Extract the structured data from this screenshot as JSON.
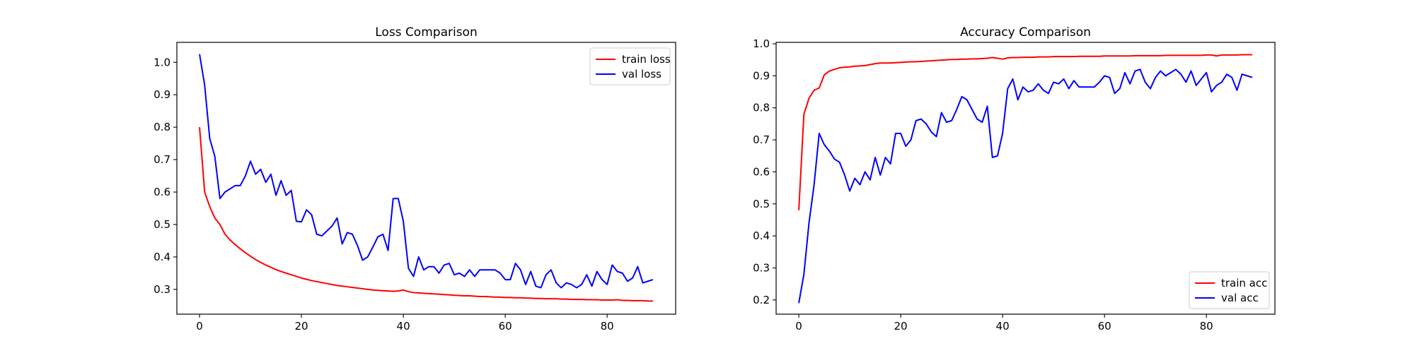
{
  "chart_data": [
    {
      "type": "line",
      "title": "Loss Comparison",
      "xlabel": "",
      "ylabel": "",
      "xlim": [
        -4.45,
        93.45
      ],
      "ylim": [
        0.2235,
        1.0615
      ],
      "xticks": [
        0,
        20,
        40,
        60,
        80
      ],
      "yticks": [
        0.3,
        0.4,
        0.5,
        0.6,
        0.7,
        0.8,
        0.9,
        1.0
      ],
      "ytick_format": 1,
      "grid": false,
      "legend": "top-right",
      "series": [
        {
          "name": "train loss",
          "color": "#ff0000",
          "x": [
            0,
            1,
            2,
            3,
            4,
            5,
            6,
            7,
            8,
            9,
            10,
            11,
            12,
            13,
            14,
            15,
            16,
            17,
            18,
            19,
            20,
            21,
            22,
            23,
            24,
            25,
            26,
            27,
            28,
            29,
            30,
            31,
            32,
            33,
            34,
            35,
            36,
            37,
            38,
            39,
            40,
            41,
            42,
            43,
            44,
            45,
            46,
            47,
            48,
            49,
            50,
            51,
            52,
            53,
            54,
            55,
            56,
            57,
            58,
            59,
            60,
            61,
            62,
            63,
            64,
            65,
            66,
            67,
            68,
            69,
            70,
            71,
            72,
            73,
            74,
            75,
            76,
            77,
            78,
            79,
            80,
            81,
            82,
            83,
            84,
            85,
            86,
            87,
            88,
            89
          ],
          "values": [
            0.8,
            0.6,
            0.555,
            0.52,
            0.5,
            0.47,
            0.452,
            0.438,
            0.425,
            0.413,
            0.402,
            0.392,
            0.383,
            0.375,
            0.368,
            0.361,
            0.355,
            0.35,
            0.345,
            0.34,
            0.335,
            0.331,
            0.327,
            0.324,
            0.321,
            0.318,
            0.315,
            0.312,
            0.31,
            0.308,
            0.306,
            0.304,
            0.302,
            0.3,
            0.298,
            0.297,
            0.296,
            0.295,
            0.294,
            0.295,
            0.298,
            0.293,
            0.29,
            0.289,
            0.288,
            0.287,
            0.286,
            0.285,
            0.284,
            0.283,
            0.282,
            0.281,
            0.28,
            0.28,
            0.279,
            0.278,
            0.278,
            0.277,
            0.276,
            0.276,
            0.275,
            0.275,
            0.274,
            0.274,
            0.273,
            0.273,
            0.272,
            0.272,
            0.271,
            0.271,
            0.271,
            0.27,
            0.27,
            0.269,
            0.269,
            0.269,
            0.268,
            0.268,
            0.268,
            0.267,
            0.267,
            0.267,
            0.268,
            0.266,
            0.266,
            0.265,
            0.265,
            0.265,
            0.264,
            0.264
          ]
        },
        {
          "name": "val loss",
          "color": "#0000ff",
          "x": [
            0,
            1,
            2,
            3,
            4,
            5,
            6,
            7,
            8,
            9,
            10,
            11,
            12,
            13,
            14,
            15,
            16,
            17,
            18,
            19,
            20,
            21,
            22,
            23,
            24,
            25,
            26,
            27,
            28,
            29,
            30,
            31,
            32,
            33,
            34,
            35,
            36,
            37,
            38,
            39,
            40,
            41,
            42,
            43,
            44,
            45,
            46,
            47,
            48,
            49,
            50,
            51,
            52,
            53,
            54,
            55,
            56,
            57,
            58,
            59,
            60,
            61,
            62,
            63,
            64,
            65,
            66,
            67,
            68,
            69,
            70,
            71,
            72,
            73,
            74,
            75,
            76,
            77,
            78,
            79,
            80,
            81,
            82,
            83,
            84,
            85,
            86,
            87,
            88,
            89
          ],
          "values": [
            1.025,
            0.93,
            0.765,
            0.71,
            0.58,
            0.6,
            0.61,
            0.62,
            0.62,
            0.65,
            0.695,
            0.655,
            0.67,
            0.63,
            0.655,
            0.59,
            0.635,
            0.59,
            0.605,
            0.51,
            0.508,
            0.545,
            0.53,
            0.47,
            0.465,
            0.48,
            0.495,
            0.52,
            0.44,
            0.475,
            0.47,
            0.435,
            0.39,
            0.4,
            0.43,
            0.462,
            0.47,
            0.42,
            0.58,
            0.58,
            0.51,
            0.365,
            0.34,
            0.4,
            0.36,
            0.37,
            0.37,
            0.35,
            0.375,
            0.38,
            0.345,
            0.35,
            0.34,
            0.36,
            0.34,
            0.36,
            0.36,
            0.36,
            0.36,
            0.35,
            0.33,
            0.33,
            0.38,
            0.36,
            0.315,
            0.355,
            0.31,
            0.305,
            0.345,
            0.36,
            0.32,
            0.305,
            0.32,
            0.315,
            0.305,
            0.315,
            0.345,
            0.31,
            0.355,
            0.33,
            0.315,
            0.375,
            0.355,
            0.35,
            0.325,
            0.335,
            0.37,
            0.32,
            0.325,
            0.33
          ]
        }
      ]
    },
    {
      "type": "line",
      "title": "Accuracy Comparison",
      "xlabel": "",
      "ylabel": "",
      "xlim": [
        -4.45,
        93.45
      ],
      "ylim": [
        0.1555,
        1.0045
      ],
      "xticks": [
        0,
        20,
        40,
        60,
        80
      ],
      "yticks": [
        0.2,
        0.3,
        0.4,
        0.5,
        0.6,
        0.7,
        0.8,
        0.9,
        1.0
      ],
      "ytick_format": 1,
      "grid": false,
      "legend": "bottom-right",
      "series": [
        {
          "name": "train acc",
          "color": "#ff0000",
          "x": [
            0,
            1,
            2,
            3,
            4,
            5,
            6,
            7,
            8,
            9,
            10,
            11,
            12,
            13,
            14,
            15,
            16,
            17,
            18,
            19,
            20,
            21,
            22,
            23,
            24,
            25,
            26,
            27,
            28,
            29,
            30,
            31,
            32,
            33,
            34,
            35,
            36,
            37,
            38,
            39,
            40,
            41,
            42,
            43,
            44,
            45,
            46,
            47,
            48,
            49,
            50,
            51,
            52,
            53,
            54,
            55,
            56,
            57,
            58,
            59,
            60,
            61,
            62,
            63,
            64,
            65,
            66,
            67,
            68,
            69,
            70,
            71,
            72,
            73,
            74,
            75,
            76,
            77,
            78,
            79,
            80,
            81,
            82,
            83,
            84,
            85,
            86,
            87,
            88,
            89
          ],
          "values": [
            0.48,
            0.78,
            0.83,
            0.855,
            0.862,
            0.903,
            0.915,
            0.92,
            0.925,
            0.927,
            0.928,
            0.93,
            0.931,
            0.932,
            0.935,
            0.938,
            0.94,
            0.94,
            0.94,
            0.941,
            0.942,
            0.943,
            0.944,
            0.944,
            0.945,
            0.946,
            0.947,
            0.948,
            0.949,
            0.95,
            0.951,
            0.951,
            0.952,
            0.952,
            0.953,
            0.953,
            0.954,
            0.955,
            0.957,
            0.955,
            0.952,
            0.956,
            0.957,
            0.957,
            0.958,
            0.958,
            0.958,
            0.959,
            0.959,
            0.959,
            0.96,
            0.96,
            0.96,
            0.96,
            0.96,
            0.961,
            0.961,
            0.961,
            0.961,
            0.961,
            0.962,
            0.962,
            0.962,
            0.962,
            0.962,
            0.962,
            0.963,
            0.963,
            0.963,
            0.963,
            0.963,
            0.963,
            0.964,
            0.964,
            0.964,
            0.964,
            0.964,
            0.964,
            0.964,
            0.964,
            0.965,
            0.965,
            0.962,
            0.965,
            0.965,
            0.965,
            0.965,
            0.966,
            0.966,
            0.966
          ]
        },
        {
          "name": "val acc",
          "color": "#0000ff",
          "x": [
            0,
            1,
            2,
            3,
            4,
            5,
            6,
            7,
            8,
            9,
            10,
            11,
            12,
            13,
            14,
            15,
            16,
            17,
            18,
            19,
            20,
            21,
            22,
            23,
            24,
            25,
            26,
            27,
            28,
            29,
            30,
            31,
            32,
            33,
            34,
            35,
            36,
            37,
            38,
            39,
            40,
            41,
            42,
            43,
            44,
            45,
            46,
            47,
            48,
            49,
            50,
            51,
            52,
            53,
            54,
            55,
            56,
            57,
            58,
            59,
            60,
            61,
            62,
            63,
            64,
            65,
            66,
            67,
            68,
            69,
            70,
            71,
            72,
            73,
            74,
            75,
            76,
            77,
            78,
            79,
            80,
            81,
            82,
            83,
            84,
            85,
            86,
            87,
            88,
            89
          ],
          "values": [
            0.19,
            0.28,
            0.44,
            0.56,
            0.72,
            0.685,
            0.665,
            0.64,
            0.63,
            0.59,
            0.54,
            0.58,
            0.56,
            0.6,
            0.575,
            0.645,
            0.59,
            0.645,
            0.625,
            0.72,
            0.72,
            0.68,
            0.7,
            0.76,
            0.765,
            0.75,
            0.725,
            0.71,
            0.785,
            0.755,
            0.76,
            0.795,
            0.835,
            0.825,
            0.795,
            0.765,
            0.755,
            0.805,
            0.645,
            0.65,
            0.72,
            0.86,
            0.89,
            0.825,
            0.865,
            0.85,
            0.855,
            0.875,
            0.855,
            0.845,
            0.88,
            0.875,
            0.89,
            0.86,
            0.885,
            0.865,
            0.865,
            0.865,
            0.865,
            0.88,
            0.9,
            0.895,
            0.845,
            0.86,
            0.91,
            0.875,
            0.915,
            0.92,
            0.88,
            0.86,
            0.895,
            0.915,
            0.9,
            0.91,
            0.92,
            0.905,
            0.88,
            0.915,
            0.87,
            0.89,
            0.91,
            0.85,
            0.87,
            0.88,
            0.905,
            0.895,
            0.855,
            0.905,
            0.9,
            0.895
          ]
        }
      ]
    }
  ]
}
